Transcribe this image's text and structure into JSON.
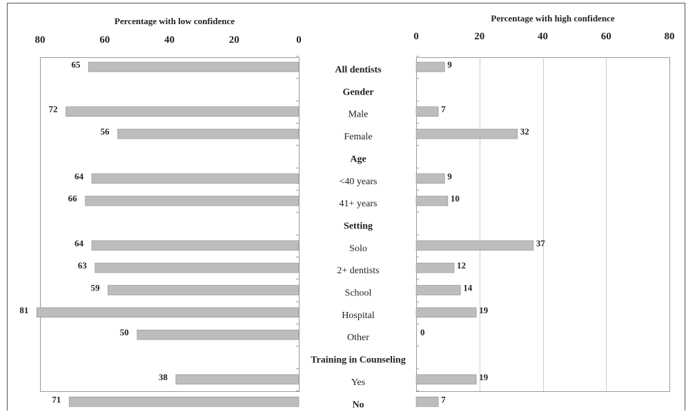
{
  "chart_data": {
    "type": "bar",
    "categories": [
      "All dentists",
      "Gender",
      "Male",
      "Female",
      "Age",
      "<40 years",
      "41+ years",
      "Setting",
      "Solo",
      "2+ dentists",
      "School",
      "Hospital",
      "Other",
      "Training in Counseling",
      "Yes",
      "No"
    ],
    "category_kind": [
      "bold",
      "header",
      "normal",
      "normal",
      "header",
      "normal",
      "normal",
      "header",
      "normal",
      "normal",
      "normal",
      "normal",
      "normal",
      "header",
      "normal",
      "bold"
    ],
    "series": [
      {
        "side": "left",
        "values": [
          65,
          null,
          72,
          56,
          null,
          64,
          66,
          null,
          64,
          63,
          59,
          81,
          50,
          null,
          38,
          71
        ]
      },
      {
        "side": "right",
        "values": [
          9,
          null,
          7,
          32,
          null,
          9,
          10,
          null,
          37,
          12,
          14,
          19,
          0,
          null,
          19,
          7
        ]
      }
    ],
    "left_axis": {
      "title": "Percentage with low confidence",
      "ticks": [
        80,
        60,
        40,
        20,
        0
      ],
      "range": [
        0,
        80
      ],
      "reversed": true
    },
    "right_axis": {
      "title": "Percentage with high confidence",
      "ticks": [
        0,
        20,
        40,
        60,
        80
      ],
      "range": [
        0,
        80
      ],
      "grid": true
    },
    "bar_color": "#bdbdbd",
    "bar_edge_color": "#8a8a8a",
    "axis_color": "#999999",
    "grid_color": "#cccccc"
  }
}
